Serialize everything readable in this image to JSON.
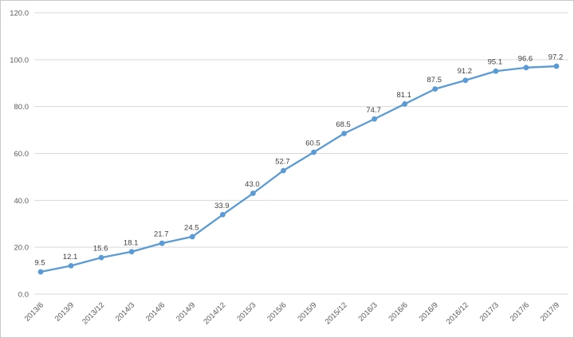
{
  "window": {
    "background": "#ffffff",
    "border_color": "#c9c9c9"
  },
  "chart_data": {
    "type": "line",
    "title": "",
    "xlabel": "",
    "ylabel": "",
    "legend": "none",
    "grid": true,
    "categories": [
      "2013/6",
      "2013/9",
      "2013/12",
      "2014/3",
      "2014/6",
      "2014/9",
      "2014/12",
      "2015/3",
      "2015/6",
      "2015/9",
      "2015/12",
      "2016/3",
      "2016/6",
      "2016/9",
      "2016/12",
      "2017/3",
      "2017/6",
      "2017/9"
    ],
    "values": [
      9.5,
      12.1,
      15.6,
      18.1,
      21.7,
      24.5,
      33.9,
      43.0,
      52.7,
      60.5,
      68.5,
      74.7,
      81.1,
      87.5,
      91.2,
      95.1,
      96.6,
      97.2
    ],
    "data_labels": [
      "9.5",
      "12.1",
      "15.6",
      "18.1",
      "21.7",
      "24.5",
      "33.9",
      "43.0",
      "52.7",
      "60.5",
      "68.5",
      "74.7",
      "81.1",
      "87.5",
      "91.2",
      "95.1",
      "96.6",
      "97.2"
    ],
    "ylim": [
      0,
      120
    ],
    "yticks": [
      0,
      20,
      40,
      60,
      80,
      100,
      120
    ],
    "ytick_labels": [
      "0.0",
      "20.0",
      "40.0",
      "60.0",
      "80.0",
      "100.0",
      "120.0"
    ],
    "xtick_rotation_deg": -45,
    "line_color": "#5b9bd5",
    "marker": "circle",
    "marker_color": "#5b9bd5",
    "gridline_color": "#d9d9d9",
    "axis_label_color": "#595959",
    "data_label_color": "#404040"
  }
}
